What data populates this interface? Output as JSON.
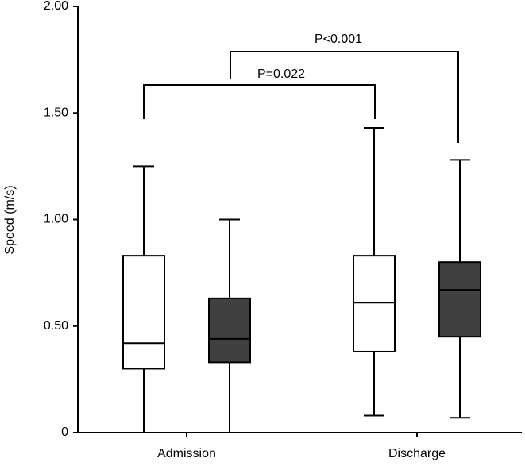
{
  "chart_data": {
    "type": "box",
    "y_label": "Speed (m/s)",
    "categories": [
      "Admission",
      "Discharge"
    ],
    "series": [
      {
        "color": "#ffffff",
        "min": [
          0,
          0.08
        ],
        "q1": [
          0.3,
          0.38
        ],
        "median": [
          0.42,
          0.61
        ],
        "q3": [
          0.83,
          0.83
        ],
        "max": [
          1.25,
          1.43
        ]
      },
      {
        "color": "#404040",
        "min": [
          0,
          0.07
        ],
        "q1": [
          0.33,
          0.45
        ],
        "median": [
          0.44,
          0.67
        ],
        "q3": [
          0.63,
          0.8
        ],
        "max": [
          1.0,
          1.28
        ]
      }
    ],
    "ylim": [
      0,
      2.0
    ],
    "yticks": [
      0,
      {
        "value": 0.5,
        "label": "0.50"
      },
      {
        "value": 1.0,
        "label": "1.00"
      },
      {
        "value": 1.5,
        "label": "1.50"
      },
      {
        "value": 2.0,
        "label": "2.00"
      }
    ],
    "annotations": [
      "P=0.022",
      "P<0.001"
    ]
  }
}
